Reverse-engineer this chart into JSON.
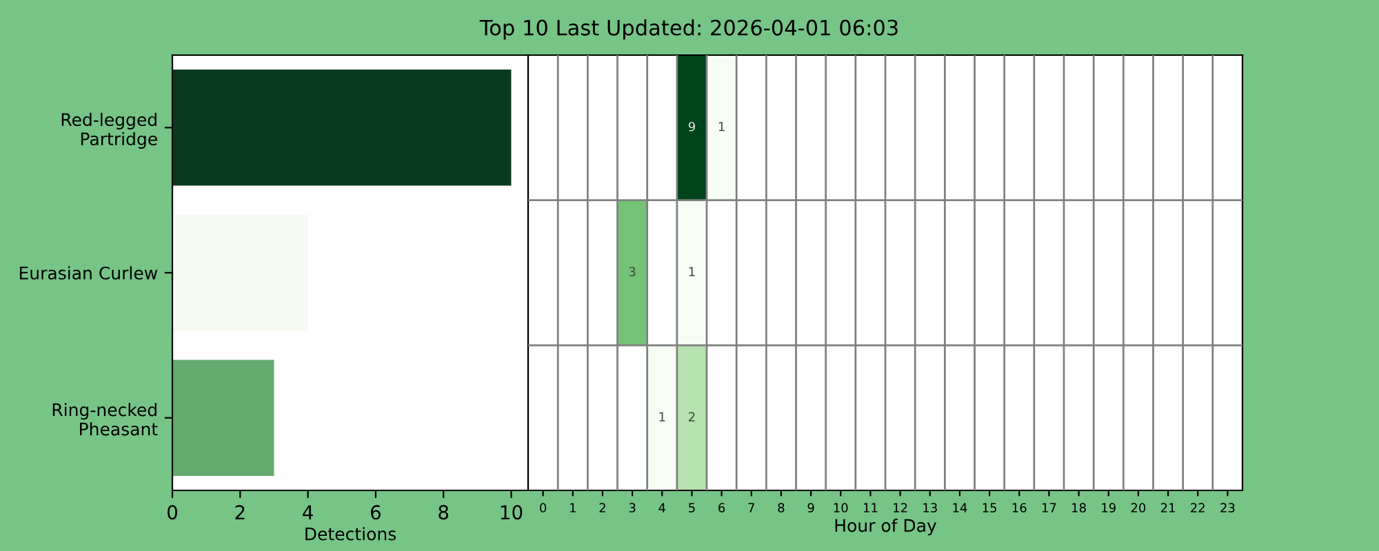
{
  "chart_data": [
    {
      "type": "bar",
      "orientation": "horizontal",
      "categories": [
        "Red-legged Partridge",
        "Eurasian Curlew",
        "Ring-necked Pheasant"
      ],
      "values": [
        10,
        4,
        3
      ],
      "colors": [
        "#0a3a1f",
        "#f5fbf3",
        "#63aa6f"
      ],
      "xlim": [
        0,
        10.5
      ],
      "xticks": [
        0,
        2,
        4,
        6,
        8,
        10
      ],
      "xlabel": "Detections"
    },
    {
      "type": "heatmap",
      "title": "Top 10 Last Updated: 2026-04-01 06:03",
      "categories": [
        "0",
        "1",
        "2",
        "3",
        "4",
        "5",
        "6",
        "7",
        "8",
        "9",
        "10",
        "11",
        "12",
        "13",
        "14",
        "15",
        "16",
        "17",
        "18",
        "19",
        "20",
        "21",
        "22",
        "23"
      ],
      "y_categories": [
        null,
        null,
        null
      ],
      "cells": [
        [
          null,
          null,
          null,
          null,
          null,
          9,
          1,
          null,
          null,
          null,
          null,
          null,
          null,
          null,
          null,
          null,
          null,
          null,
          null,
          null,
          null,
          null,
          null,
          null
        ],
        [
          null,
          null,
          null,
          3,
          null,
          1,
          null,
          null,
          null,
          null,
          null,
          null,
          null,
          null,
          null,
          null,
          null,
          null,
          null,
          null,
          null,
          null,
          null,
          null
        ],
        [
          null,
          null,
          null,
          null,
          1,
          2,
          null,
          null,
          null,
          null,
          null,
          null,
          null,
          null,
          null,
          null,
          null,
          null,
          null,
          null,
          null,
          null,
          null,
          null
        ]
      ],
      "data_labels": true,
      "grid": true,
      "xlabel": "Hour of Day"
    }
  ]
}
